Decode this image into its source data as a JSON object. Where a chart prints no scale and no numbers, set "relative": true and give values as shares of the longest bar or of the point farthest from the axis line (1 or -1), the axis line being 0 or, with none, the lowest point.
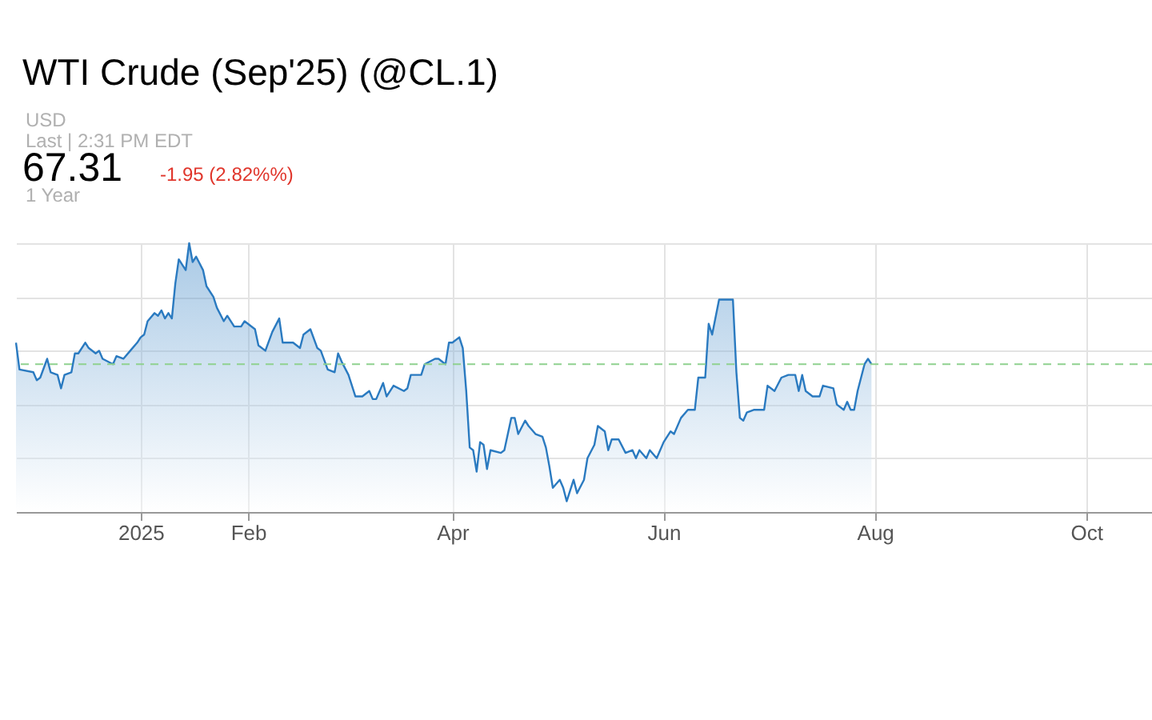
{
  "chart_data": {
    "type": "area",
    "title": "WTI Crude (Sep'25) (@CL.1)",
    "annotations": [
      "USD",
      "Last | 2:31 PM EDT",
      "67.31",
      "-1.95 (2.82%%)",
      "1 Year"
    ],
    "relative": true,
    "grid": true,
    "xlim": [
      "2024-11-26",
      "2025-10-20"
    ],
    "xticks": [
      {
        "value": "2025-01-01",
        "label": "2025"
      },
      {
        "value": "2025-02-01",
        "label": "Feb"
      },
      {
        "value": "2025-04-01",
        "label": "Apr"
      },
      {
        "value": "2025-06-01",
        "label": "Jun"
      },
      {
        "value": "2025-08-01",
        "label": "Aug"
      },
      {
        "value": "2025-10-01",
        "label": "Oct"
      }
    ],
    "x": [
      "2024-11-26",
      "2024-11-27",
      "2024-12-01",
      "2024-12-02",
      "2024-12-03",
      "2024-12-05",
      "2024-12-06",
      "2024-12-08",
      "2024-12-09",
      "2024-12-10",
      "2024-12-12",
      "2024-12-13",
      "2024-12-14",
      "2024-12-16",
      "2024-12-17",
      "2024-12-19",
      "2024-12-20",
      "2024-12-21",
      "2024-12-24",
      "2024-12-25",
      "2024-12-27",
      "2024-12-29",
      "2024-12-31",
      "2025-01-01",
      "2025-01-02",
      "2025-01-03",
      "2025-01-05",
      "2025-01-06",
      "2025-01-07",
      "2025-01-08",
      "2025-01-09",
      "2025-01-10",
      "2025-01-11",
      "2025-01-12",
      "2025-01-14",
      "2025-01-15",
      "2025-01-16",
      "2025-01-17",
      "2025-01-19",
      "2025-01-20",
      "2025-01-22",
      "2025-01-23",
      "2025-01-25",
      "2025-01-26",
      "2025-01-28",
      "2025-01-30",
      "2025-01-31",
      "2025-02-03",
      "2025-02-04",
      "2025-02-06",
      "2025-02-08",
      "2025-02-10",
      "2025-02-11",
      "2025-02-14",
      "2025-02-16",
      "2025-02-17",
      "2025-02-19",
      "2025-02-21",
      "2025-02-22",
      "2025-02-24",
      "2025-02-26",
      "2025-02-27",
      "2025-02-28",
      "2025-03-02",
      "2025-03-04",
      "2025-03-06",
      "2025-03-08",
      "2025-03-09",
      "2025-03-10",
      "2025-03-12",
      "2025-03-13",
      "2025-03-14",
      "2025-03-15",
      "2025-03-18",
      "2025-03-19",
      "2025-03-20",
      "2025-03-23",
      "2025-03-24",
      "2025-03-27",
      "2025-03-28",
      "2025-03-30",
      "2025-03-31",
      "2025-04-01",
      "2025-04-03",
      "2025-04-04",
      "2025-04-05",
      "2025-04-06",
      "2025-04-07",
      "2025-04-08",
      "2025-04-09",
      "2025-04-10",
      "2025-04-11",
      "2025-04-12",
      "2025-04-15",
      "2025-04-16",
      "2025-04-18",
      "2025-04-19",
      "2025-04-20",
      "2025-04-22",
      "2025-04-23",
      "2025-04-25",
      "2025-04-27",
      "2025-04-28",
      "2025-04-29",
      "2025-04-30",
      "2025-05-02",
      "2025-05-03",
      "2025-05-04",
      "2025-05-06",
      "2025-05-07",
      "2025-05-09",
      "2025-05-10",
      "2025-05-12",
      "2025-05-13",
      "2025-05-15",
      "2025-05-16",
      "2025-05-17",
      "2025-05-19",
      "2025-05-21",
      "2025-05-23",
      "2025-05-24",
      "2025-05-25",
      "2025-05-27",
      "2025-05-28",
      "2025-05-30",
      "2025-06-01",
      "2025-06-03",
      "2025-06-04",
      "2025-06-06",
      "2025-06-08",
      "2025-06-10",
      "2025-06-11",
      "2025-06-13",
      "2025-06-14",
      "2025-06-15",
      "2025-06-17",
      "2025-06-19",
      "2025-06-21",
      "2025-06-22",
      "2025-06-23",
      "2025-06-24",
      "2025-06-25",
      "2025-06-27",
      "2025-06-29",
      "2025-06-30",
      "2025-07-01",
      "2025-07-03",
      "2025-07-05",
      "2025-07-07",
      "2025-07-09",
      "2025-07-10",
      "2025-07-11",
      "2025-07-12",
      "2025-07-14",
      "2025-07-16",
      "2025-07-17",
      "2025-07-20",
      "2025-07-21",
      "2025-07-23",
      "2025-07-24",
      "2025-07-25",
      "2025-07-26",
      "2025-07-27",
      "2025-07-29",
      "2025-07-30",
      "2025-07-31"
    ],
    "series": [
      {
        "color": "#2a7ac0",
        "values": [
          0.63,
          0.53,
          0.52,
          0.49,
          0.5,
          0.57,
          0.52,
          0.51,
          0.46,
          0.51,
          0.52,
          0.59,
          0.59,
          0.63,
          0.61,
          0.59,
          0.6,
          0.57,
          0.55,
          0.58,
          0.57,
          0.6,
          0.63,
          0.65,
          0.66,
          0.71,
          0.74,
          0.73,
          0.75,
          0.72,
          0.74,
          0.72,
          0.85,
          0.94,
          0.9,
          1.0,
          0.93,
          0.95,
          0.9,
          0.84,
          0.8,
          0.76,
          0.71,
          0.73,
          0.69,
          0.69,
          0.71,
          0.68,
          0.62,
          0.6,
          0.67,
          0.72,
          0.63,
          0.63,
          0.61,
          0.66,
          0.68,
          0.61,
          0.6,
          0.53,
          0.52,
          0.59,
          0.56,
          0.51,
          0.43,
          0.43,
          0.45,
          0.42,
          0.42,
          0.48,
          0.43,
          0.45,
          0.47,
          0.45,
          0.46,
          0.51,
          0.51,
          0.55,
          0.57,
          0.57,
          0.55,
          0.63,
          0.63,
          0.65,
          0.61,
          0.45,
          0.24,
          0.23,
          0.15,
          0.26,
          0.25,
          0.16,
          0.23,
          0.22,
          0.23,
          0.35,
          0.35,
          0.29,
          0.34,
          0.32,
          0.29,
          0.28,
          0.24,
          0.17,
          0.09,
          0.12,
          0.09,
          0.04,
          0.12,
          0.07,
          0.12,
          0.2,
          0.25,
          0.32,
          0.3,
          0.23,
          0.27,
          0.27,
          0.22,
          0.23,
          0.2,
          0.23,
          0.2,
          0.23,
          0.2,
          0.26,
          0.3,
          0.29,
          0.35,
          0.38,
          0.38,
          0.5,
          0.5,
          0.7,
          0.66,
          0.79,
          0.79,
          0.79,
          0.52,
          0.35,
          0.34,
          0.37,
          0.38,
          0.38,
          0.38,
          0.47,
          0.45,
          0.5,
          0.51,
          0.51,
          0.45,
          0.51,
          0.45,
          0.43,
          0.43,
          0.47,
          0.46,
          0.4,
          0.38,
          0.41,
          0.38,
          0.38,
          0.45,
          0.55,
          0.57,
          0.55
        ]
      }
    ],
    "ref_lines": [
      {
        "axis": "y",
        "value": 0.55,
        "color": "#8fd18f",
        "line_style": "dashed"
      }
    ]
  }
}
